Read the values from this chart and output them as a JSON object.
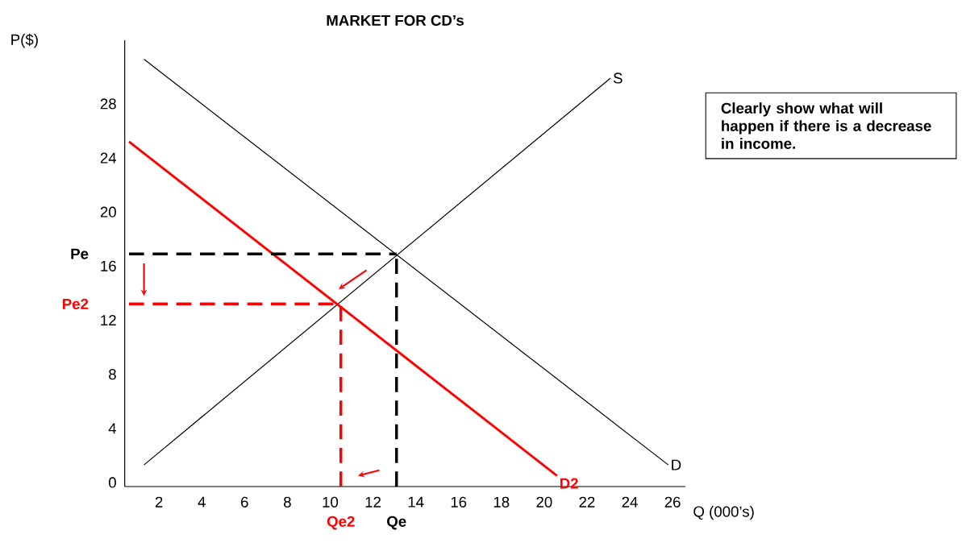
{
  "chart_data": {
    "type": "line",
    "title": "MARKET FOR CD’s",
    "xlabel": "Q (000’s)",
    "ylabel": "P($)",
    "xlim": [
      0.4,
      26.6
    ],
    "ylim": [
      -0.3,
      32.7
    ],
    "xticks": [
      2,
      4,
      6,
      8,
      10,
      12,
      14,
      16,
      18,
      20,
      22,
      24,
      26
    ],
    "yticks": [
      0,
      4,
      8,
      12,
      16,
      20,
      24,
      28
    ],
    "series": [
      {
        "name": "S",
        "color": "#000000",
        "x": [
          1.3,
          23.1
        ],
        "values": [
          1.3,
          29.9
        ]
      },
      {
        "name": "D",
        "color": "#000000",
        "x": [
          1.3,
          25.8
        ],
        "values": [
          31.3,
          1.3
        ]
      },
      {
        "name": "D2",
        "color": "#ff0000",
        "x": [
          0.6,
          20.6
        ],
        "values": [
          25.2,
          0.5
        ]
      }
    ],
    "ref_lines": [
      {
        "axis": "y",
        "value": 16.9,
        "label": "Pe",
        "color": "#000000",
        "line_style": "dashed"
      },
      {
        "axis": "x",
        "value": 13.1,
        "label": "Qe",
        "color": "#000000",
        "line_style": "dashed"
      },
      {
        "axis": "y",
        "value": 13.2,
        "label": "Pe2",
        "color": "#ff0000",
        "line_style": "dashed"
      },
      {
        "axis": "x",
        "value": 10.5,
        "label": "Qe2",
        "color": "#ff0000",
        "line_style": "dashed"
      }
    ],
    "annotations": [
      "Clearly show what will happen if there is a decrease in income."
    ]
  }
}
